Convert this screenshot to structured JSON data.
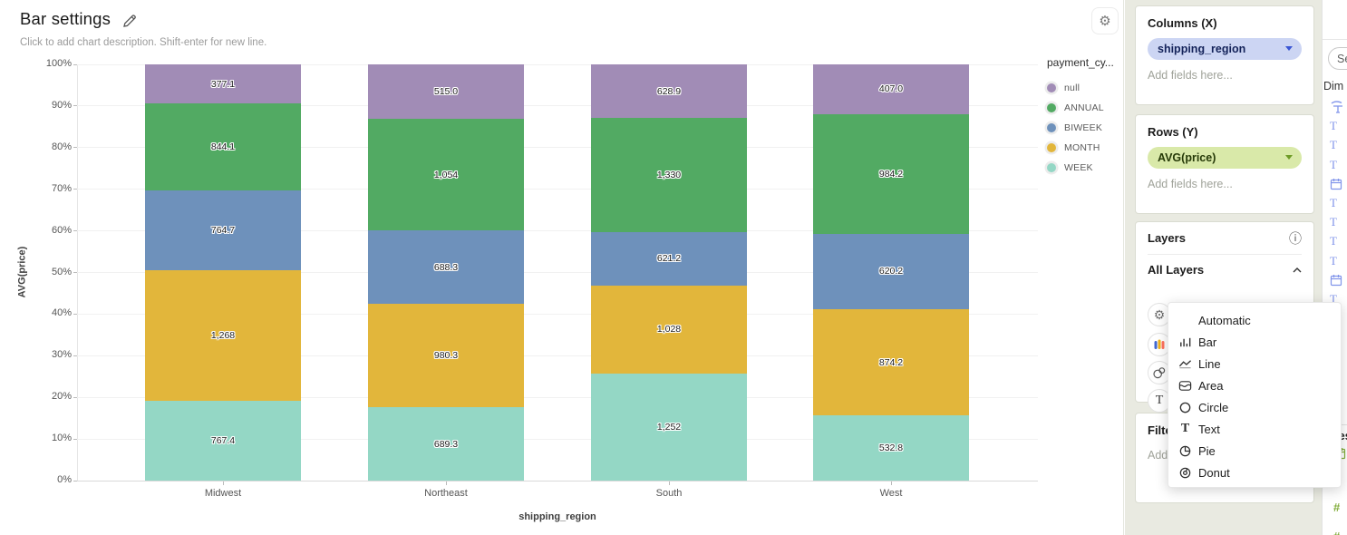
{
  "header": {
    "title": "Bar settings",
    "subtitle": "Click to add chart description. Shift-enter for new line."
  },
  "icons": {
    "gear_glyph": "⚙",
    "info_glyph": "ⓘ",
    "hash_glyph": "#"
  },
  "chart_data": {
    "type": "bar",
    "stacked": true,
    "percent_scale": true,
    "title": "Bar settings",
    "xlabel": "shipping_region",
    "ylabel": "AVG(price)",
    "categories": [
      "Midwest",
      "Northeast",
      "South",
      "West"
    ],
    "series": [
      {
        "name": "null",
        "color": "#a18cb6",
        "values": [
          377.1,
          515.0,
          628.9,
          407.0
        ],
        "labels": [
          "377.1",
          "515.0",
          "628.9",
          "407.0"
        ]
      },
      {
        "name": "ANNUAL",
        "color": "#52aa63",
        "values": [
          844.1,
          1054,
          1330,
          984.2
        ],
        "labels": [
          "844.1",
          "1,054",
          "1,330",
          "984.2"
        ]
      },
      {
        "name": "BIWEEK",
        "color": "#6e91bb",
        "values": [
          764.7,
          688.3,
          621.2,
          620.2
        ],
        "labels": [
          "764.7",
          "688.3",
          "621.2",
          "620.2"
        ]
      },
      {
        "name": "MONTH",
        "color": "#e2b63b",
        "values": [
          1268,
          980.3,
          1028,
          874.2
        ],
        "labels": [
          "1,268",
          "980.3",
          "1,028",
          "874.2"
        ]
      },
      {
        "name": "WEEK",
        "color": "#94d7c5",
        "values": [
          767.4,
          689.3,
          1252,
          532.8
        ],
        "labels": [
          "767.4",
          "689.3",
          "1,252",
          "532.8"
        ]
      }
    ],
    "stack_order_top_to_bottom": [
      "null",
      "ANNUAL",
      "BIWEEK",
      "MONTH",
      "WEEK"
    ],
    "y_ticks": [
      "0%",
      "10%",
      "20%",
      "30%",
      "40%",
      "50%",
      "60%",
      "70%",
      "80%",
      "90%",
      "100%"
    ],
    "ylim": [
      0,
      100
    ],
    "grid": true,
    "legend_title": "payment_cy...",
    "legend_position": "right"
  },
  "panel": {
    "columns_section": {
      "title": "Columns (X)",
      "pill": "shipping_region",
      "placeholder": "Add fields here..."
    },
    "rows_section": {
      "title": "Rows (Y)",
      "pill": "AVG(price)",
      "placeholder": "Add fields here..."
    },
    "layers_section": {
      "title": "Layers",
      "all_layers_label": "All Layers",
      "mark_type_value": "Bar"
    },
    "filters_section": {
      "title": "Filters",
      "placeholder": "Add fields here..."
    }
  },
  "dropdown_menu": {
    "items": [
      {
        "label": "Automatic",
        "icon": "none"
      },
      {
        "label": "Bar",
        "icon": "bar-chart-icon"
      },
      {
        "label": "Line",
        "icon": "line-chart-icon"
      },
      {
        "label": "Area",
        "icon": "area-chart-icon"
      },
      {
        "label": "Circle",
        "icon": "circle-mark-icon"
      },
      {
        "label": "Text",
        "icon": "text-mark-icon"
      },
      {
        "label": "Pie",
        "icon": "pie-chart-icon"
      },
      {
        "label": "Donut",
        "icon": "donut-chart-icon"
      }
    ]
  },
  "fields_panel": {
    "search_text_partial": "Se",
    "dimensions_label_partial": "Dim",
    "measures_label": "Measures",
    "dimension_field_icons": [
      "function-text-icon",
      "text-field-icon",
      "text-field-icon",
      "text-field-icon",
      "calendar-icon",
      "text-field-icon",
      "text-field-icon",
      "text-field-icon",
      "text-field-icon",
      "calendar-icon",
      "text-field-icon",
      "text-field-icon",
      "text-field-icon",
      "list-icon",
      "text-field-icon",
      "text-field-icon",
      "text-field-icon"
    ],
    "measure_field_icons": [
      "calendar-green-icon",
      "hash-icon",
      "hash-icon",
      "hash-icon"
    ]
  }
}
